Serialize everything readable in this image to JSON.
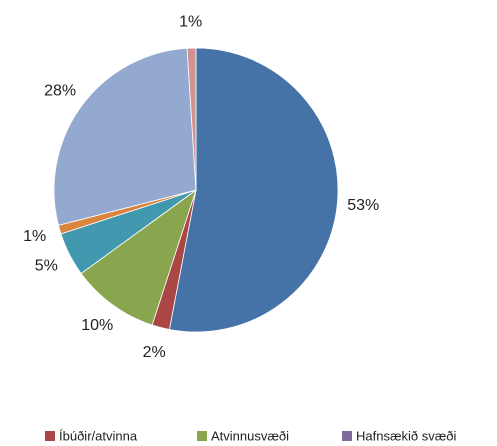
{
  "chart_data": {
    "type": "pie",
    "categories": [
      null,
      "Íbúðir/atvinna",
      "Atvinnusvæði",
      "Hafnsækið svæði",
      null,
      null,
      null,
      null
    ],
    "values": [
      53,
      2,
      10,
      0,
      5,
      1,
      28,
      1
    ],
    "value_labels": [
      "53%",
      "2%",
      "10%",
      null,
      "5%",
      "1%",
      "28%",
      "1%"
    ],
    "colors": [
      "#4572a7",
      "#aa4643",
      "#89a54e",
      "#80699b",
      "#4198af",
      "#db843d",
      "#93a9cf",
      "#d19392"
    ],
    "legend": "bottom"
  }
}
